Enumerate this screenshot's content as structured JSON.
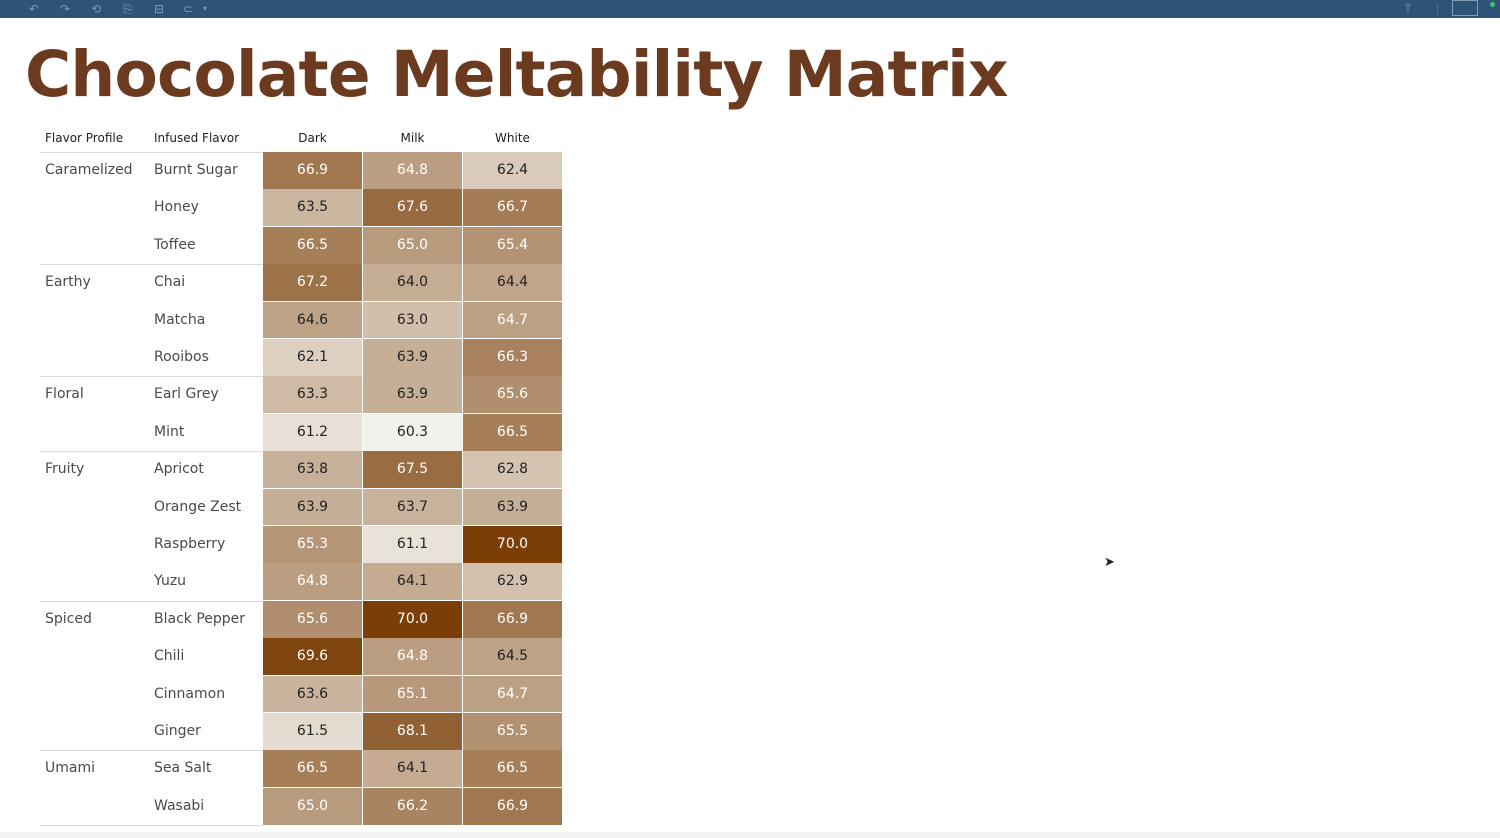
{
  "toolbar": {
    "icons": [
      "undo-icon",
      "redo-icon",
      "revert-icon",
      "save-icon",
      "data-source-icon",
      "pause-icon",
      "dropdown-icon",
      "format-painter-icon",
      "presentation-mode-icon"
    ]
  },
  "title": "Chocolate Meltability Matrix",
  "headers": {
    "flavor_profile": "Flavor Profile",
    "infused_flavor": "Infused Flavor",
    "columns": [
      "Dark",
      "Milk",
      "White"
    ]
  },
  "color_scale": {
    "low": "#f3f1ec",
    "high": "#7a3e06",
    "min": 60.3,
    "max": 70.0
  },
  "groups": [
    {
      "profile": "Caramelized",
      "rows": [
        {
          "flavor": "Burnt Sugar",
          "values": [
            "66.9",
            "64.8",
            "62.4"
          ]
        },
        {
          "flavor": "Honey",
          "values": [
            "63.5",
            "67.6",
            "66.7"
          ]
        },
        {
          "flavor": "Toffee",
          "values": [
            "66.5",
            "65.0",
            "65.4"
          ]
        }
      ]
    },
    {
      "profile": "Earthy",
      "rows": [
        {
          "flavor": "Chai",
          "values": [
            "67.2",
            "64.0",
            "64.4"
          ]
        },
        {
          "flavor": "Matcha",
          "values": [
            "64.6",
            "63.0",
            "64.7"
          ]
        },
        {
          "flavor": "Rooibos",
          "values": [
            "62.1",
            "63.9",
            "66.3"
          ]
        }
      ]
    },
    {
      "profile": "Floral",
      "rows": [
        {
          "flavor": "Earl Grey",
          "values": [
            "63.3",
            "63.9",
            "65.6"
          ]
        },
        {
          "flavor": "Mint",
          "values": [
            "61.2",
            "60.3",
            "66.5"
          ]
        }
      ]
    },
    {
      "profile": "Fruity",
      "rows": [
        {
          "flavor": "Apricot",
          "values": [
            "63.8",
            "67.5",
            "62.8"
          ]
        },
        {
          "flavor": "Orange Zest",
          "values": [
            "63.9",
            "63.7",
            "63.9"
          ]
        },
        {
          "flavor": "Raspberry",
          "values": [
            "65.3",
            "61.1",
            "70.0"
          ]
        },
        {
          "flavor": "Yuzu",
          "values": [
            "64.8",
            "64.1",
            "62.9"
          ]
        }
      ]
    },
    {
      "profile": "Spiced",
      "rows": [
        {
          "flavor": "Black Pepper",
          "values": [
            "65.6",
            "70.0",
            "66.9"
          ]
        },
        {
          "flavor": "Chili",
          "values": [
            "69.6",
            "64.8",
            "64.5"
          ]
        },
        {
          "flavor": "Cinnamon",
          "values": [
            "63.6",
            "65.1",
            "64.7"
          ]
        },
        {
          "flavor": "Ginger",
          "values": [
            "61.5",
            "68.1",
            "65.5"
          ]
        }
      ]
    },
    {
      "profile": "Umami",
      "rows": [
        {
          "flavor": "Sea Salt",
          "values": [
            "66.5",
            "64.1",
            "66.5"
          ]
        },
        {
          "flavor": "Wasabi",
          "values": [
            "65.0",
            "66.2",
            "66.9"
          ]
        }
      ]
    }
  ]
}
